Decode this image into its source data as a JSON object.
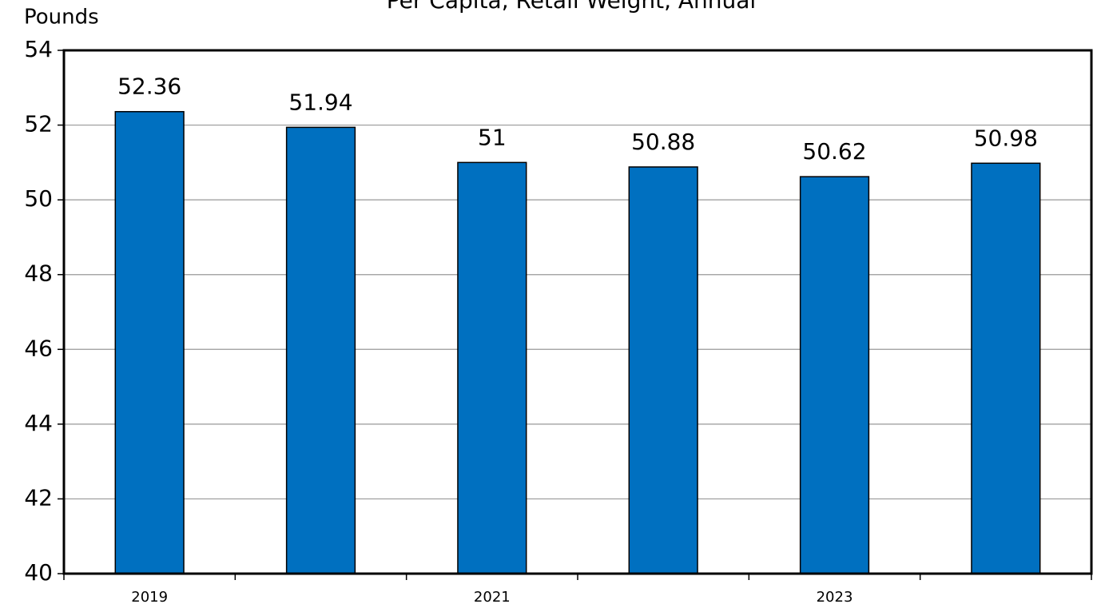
{
  "chart_data": {
    "type": "bar",
    "title": "Per Capita, Retail Weight, Annual",
    "y_label": "Pounds",
    "categories": [
      "2019",
      null,
      "2021",
      null,
      "2023",
      null
    ],
    "values": [
      52.36,
      51.94,
      51,
      50.88,
      50.62,
      50.98
    ],
    "color": "#0070c0",
    "ylim": [
      40,
      54
    ],
    "yticks": [
      40,
      42,
      44,
      46,
      48,
      50,
      52,
      54
    ],
    "grid": true
  }
}
